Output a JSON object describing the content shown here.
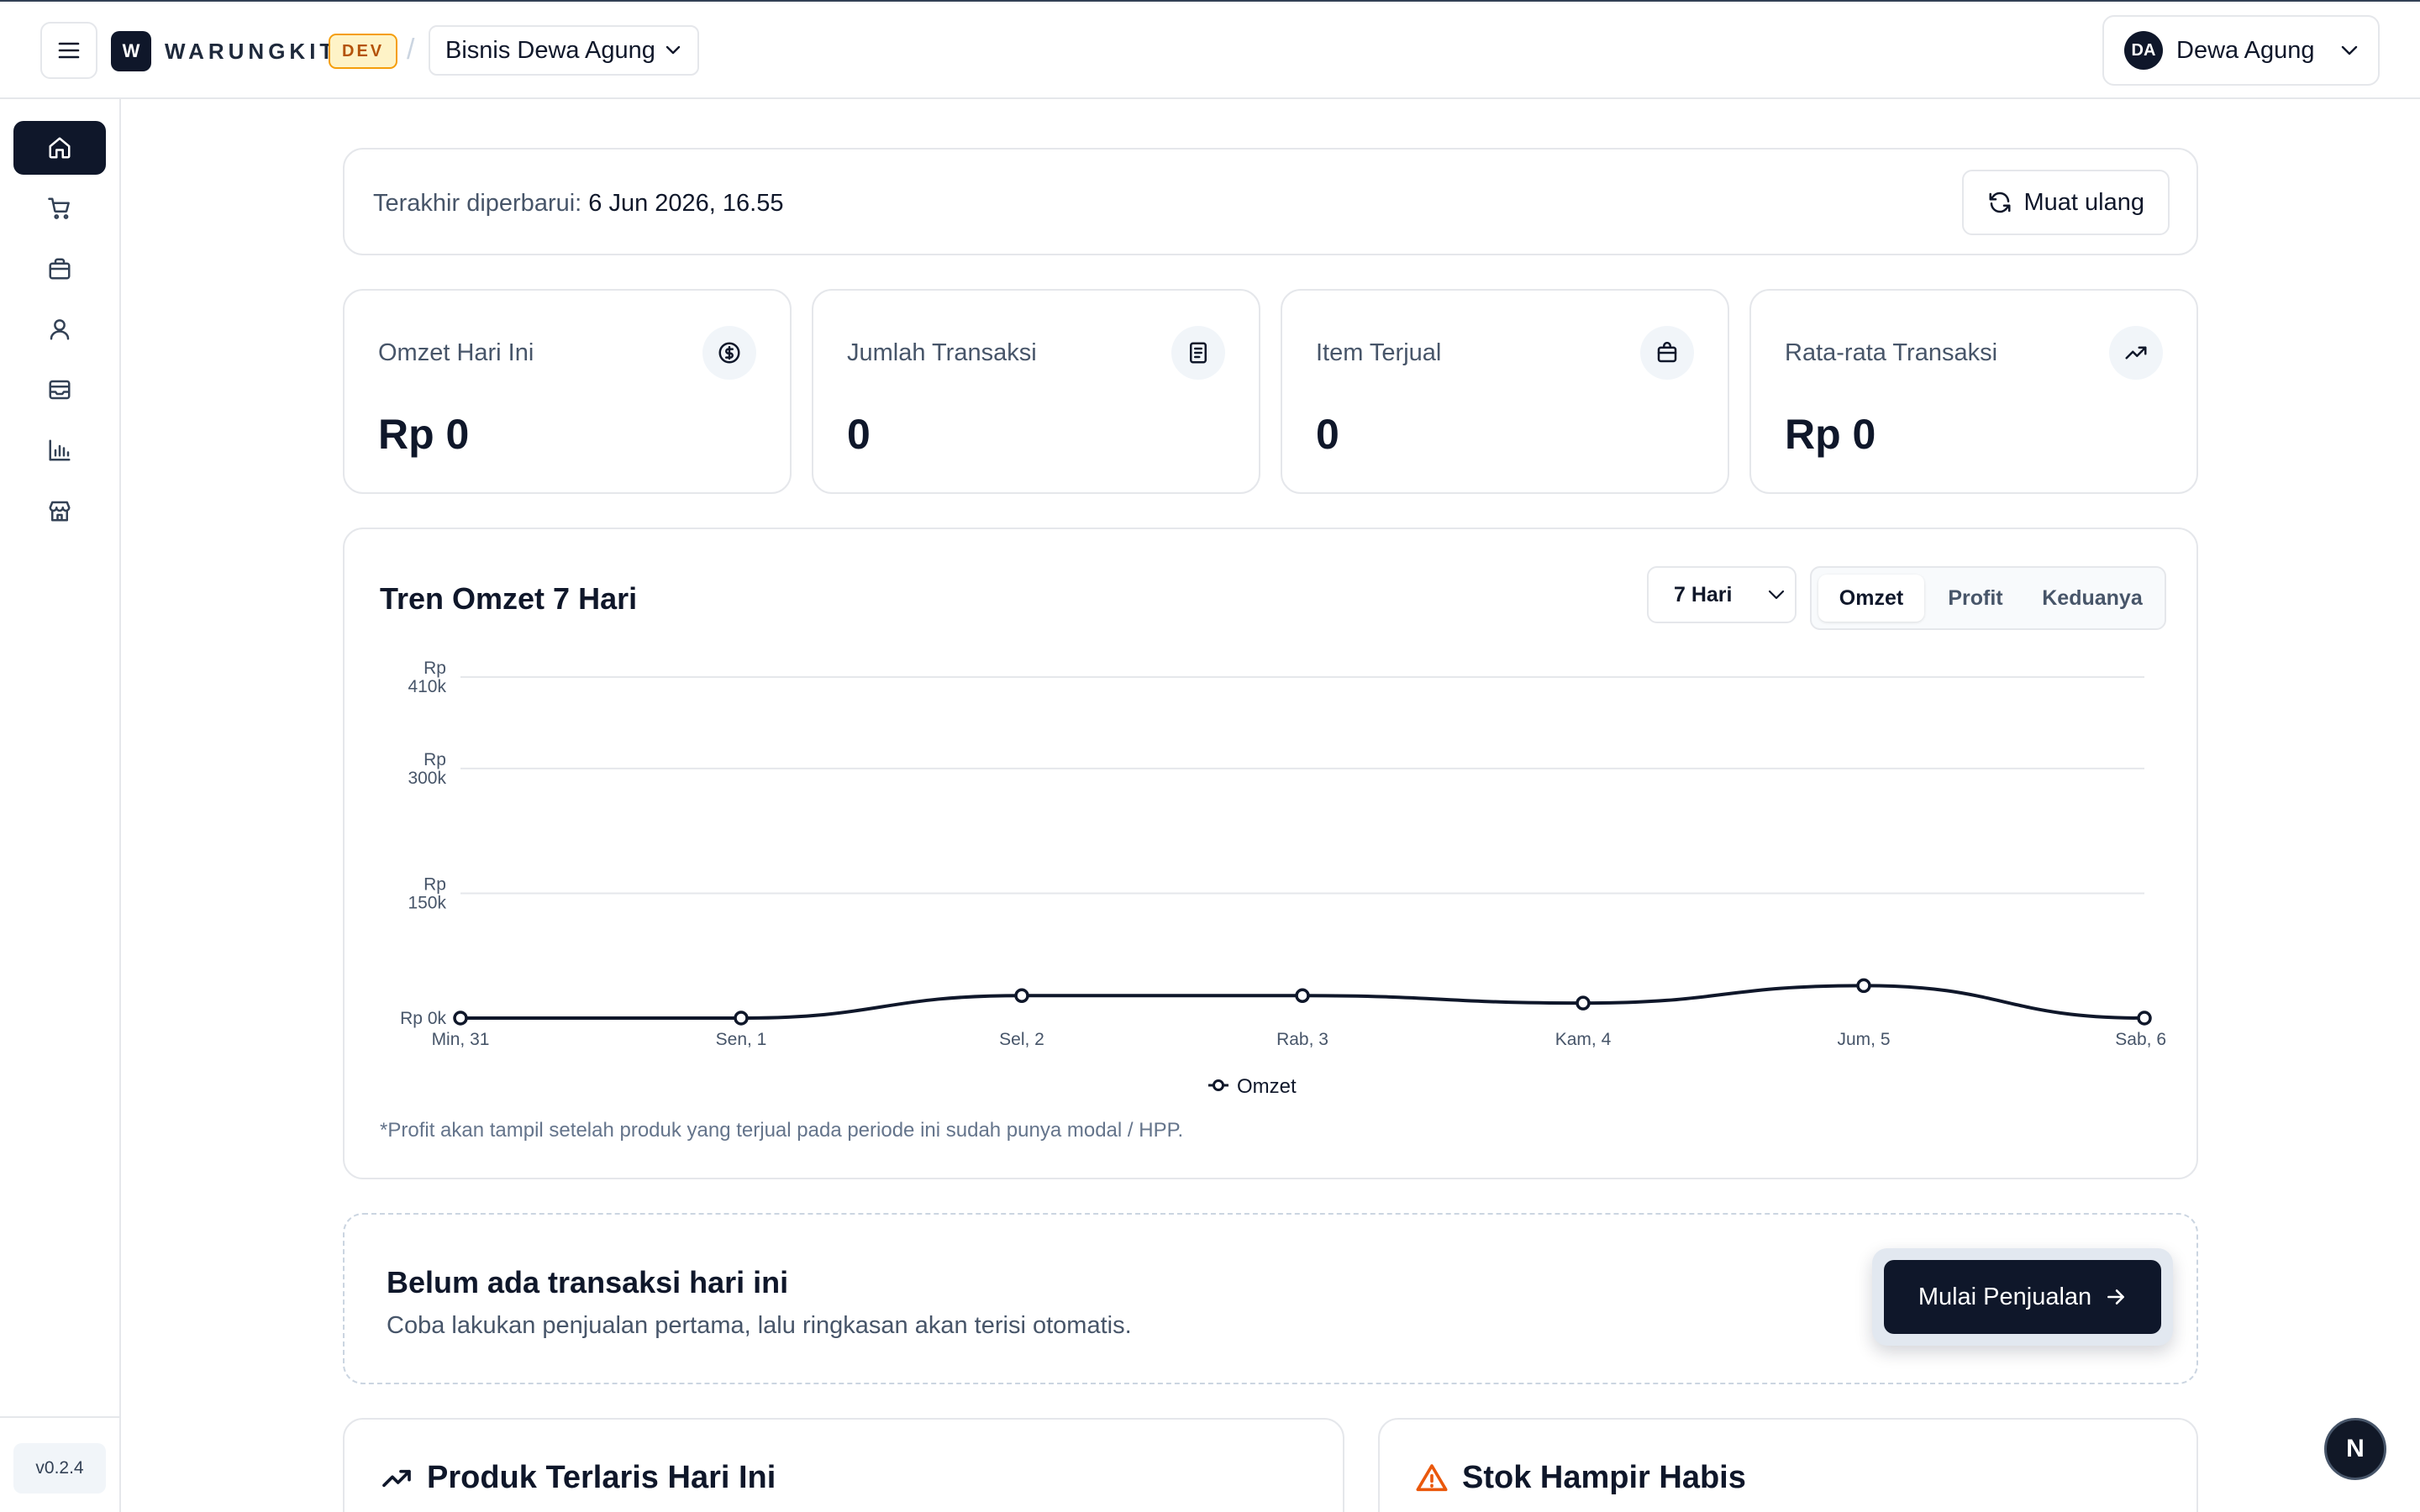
{
  "header": {
    "logo_letter": "W",
    "brand": "WARUNGKIT",
    "env_badge": "DEV",
    "separator": "/",
    "business_name": "Bisnis Dewa Agung",
    "user_initials": "DA",
    "user_name": "Dewa Agung"
  },
  "sidebar": {
    "items": [
      {
        "name": "home",
        "icon": "home-icon",
        "active": true
      },
      {
        "name": "cart",
        "icon": "cart-icon",
        "active": false
      },
      {
        "name": "products",
        "icon": "box-icon",
        "active": false
      },
      {
        "name": "customers",
        "icon": "user-icon",
        "active": false
      },
      {
        "name": "inventory",
        "icon": "inbox-icon",
        "active": false
      },
      {
        "name": "reports",
        "icon": "bar-chart-icon",
        "active": false
      },
      {
        "name": "store",
        "icon": "store-icon",
        "active": false
      }
    ],
    "version": "v0.2.4"
  },
  "updated": {
    "label": "Terakhir diperbarui:",
    "value": "6 Jun 2026, 16.55",
    "reload_label": "Muat ulang"
  },
  "stats": [
    {
      "label": "Omzet Hari Ini",
      "value": "Rp 0",
      "icon": "dollar-circle-icon"
    },
    {
      "label": "Jumlah Transaksi",
      "value": "0",
      "icon": "receipt-icon"
    },
    {
      "label": "Item Terjual",
      "value": "0",
      "icon": "bag-icon"
    },
    {
      "label": "Rata-rata Transaksi",
      "value": "Rp 0",
      "icon": "trending-up-icon"
    }
  ],
  "trend": {
    "title": "Tren Omzet 7 Hari",
    "period": "7 Hari",
    "toggle": [
      "Omzet",
      "Profit",
      "Keduanya"
    ],
    "toggle_selected": "Omzet",
    "note": "*Profit akan tampil setelah produk yang terjual pada periode ini sudah punya modal / HPP."
  },
  "chart_data": {
    "type": "line",
    "categories": [
      "Min, 31",
      "Sen, 1",
      "Sel, 2",
      "Rab, 3",
      "Kam, 4",
      "Jum, 5",
      "Sab, 6"
    ],
    "series": [
      {
        "name": "Omzet",
        "values": [
          0,
          0,
          27000,
          27000,
          18000,
          39000,
          0
        ]
      }
    ],
    "yticks": [
      {
        "value": 0,
        "label": "Rp 0k"
      },
      {
        "value": 150000,
        "label": "Rp 150k"
      },
      {
        "value": 300000,
        "label": "Rp 300k"
      },
      {
        "value": 410000,
        "label": "Rp 410k"
      }
    ],
    "ylim": [
      0,
      410000
    ],
    "grid": true,
    "legend": "bottom",
    "color": "#0f172a"
  },
  "empty": {
    "title": "Belum ada transaksi hari ini",
    "subtitle": "Coba lakukan penjualan pertama, lalu ringkasan akan terisi otomatis.",
    "cta": "Mulai Penjualan"
  },
  "sections": {
    "best_sellers": "Produk Terlaris Hari Ini",
    "low_stock": "Stok Hampir Habis"
  },
  "dev_badge": "N"
}
